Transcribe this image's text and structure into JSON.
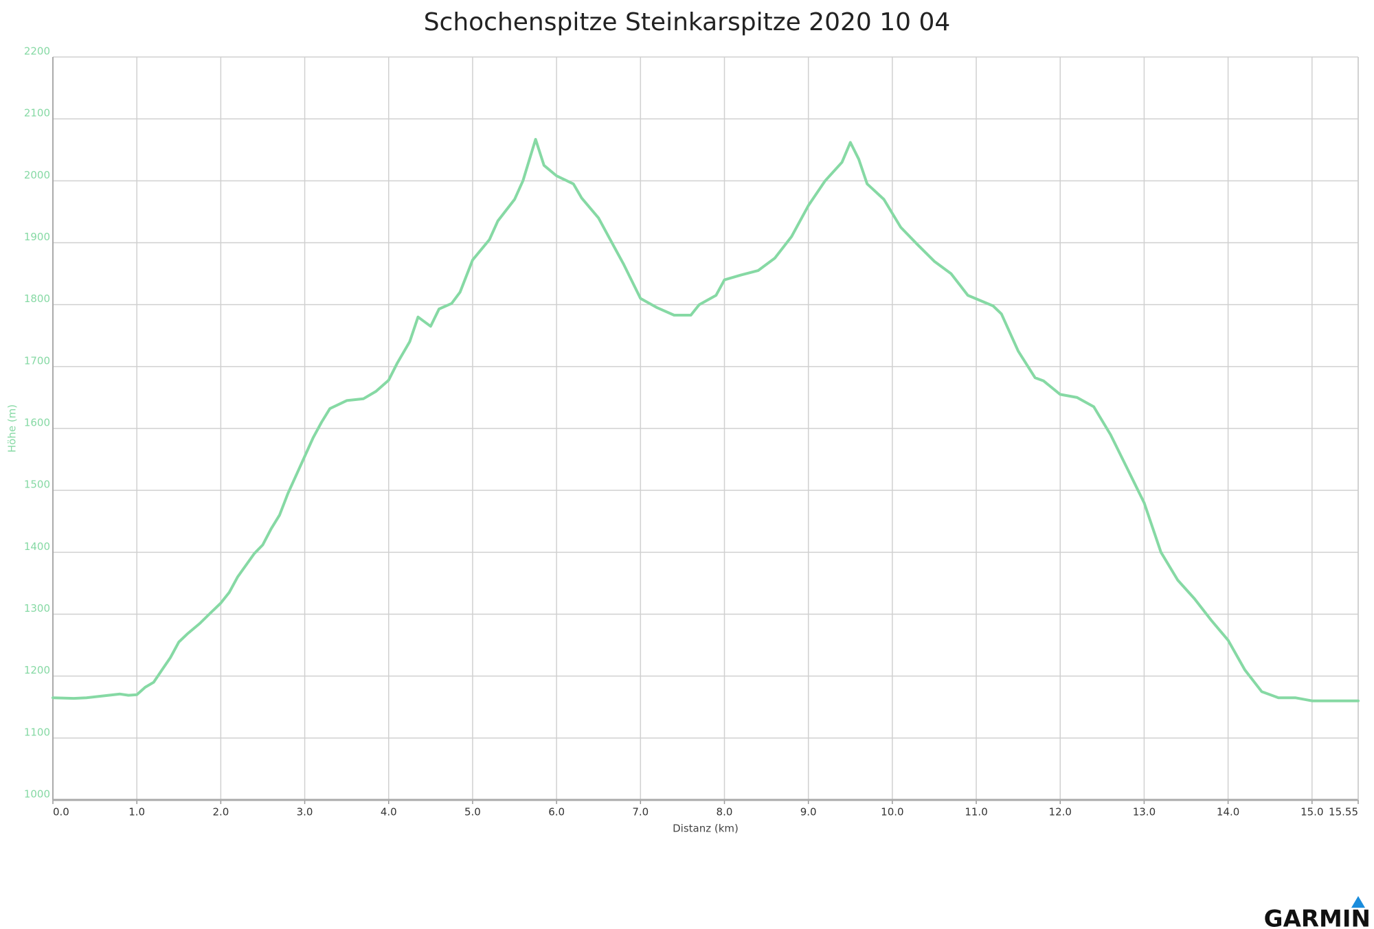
{
  "chart_data": {
    "type": "line",
    "title": "Schochenspitze Steinkarspitze 2020 10 04",
    "x_label": "Distanz (km)",
    "y_label": "Höhe (m)",
    "logo": "GARMIN",
    "color": "#86d9a4",
    "grid": true,
    "xlim": [
      0,
      15.55
    ],
    "ylim": [
      1000,
      2200
    ],
    "xticks": [
      {
        "value": 0,
        "label": "0.0"
      },
      {
        "value": 1,
        "label": "1.0"
      },
      {
        "value": 2,
        "label": "2.0"
      },
      {
        "value": 3,
        "label": "3.0"
      },
      {
        "value": 4,
        "label": "4.0"
      },
      {
        "value": 5,
        "label": "5.0"
      },
      {
        "value": 6,
        "label": "6.0"
      },
      {
        "value": 7,
        "label": "7.0"
      },
      {
        "value": 8,
        "label": "8.0"
      },
      {
        "value": 9,
        "label": "9.0"
      },
      {
        "value": 10,
        "label": "10.0"
      },
      {
        "value": 11,
        "label": "11.0"
      },
      {
        "value": 12,
        "label": "12.0"
      },
      {
        "value": 13,
        "label": "13.0"
      },
      {
        "value": 14,
        "label": "14.0"
      },
      {
        "value": 15,
        "label": "15.0"
      },
      15.55
    ],
    "yticks": [
      1000,
      1100,
      1200,
      1300,
      1400,
      1500,
      1600,
      1700,
      1800,
      1900,
      2000,
      2100,
      2200
    ],
    "x": [
      0.0,
      0.25,
      0.4,
      0.6,
      0.8,
      0.9,
      1.0,
      1.1,
      1.2,
      1.3,
      1.4,
      1.5,
      1.6,
      1.75,
      1.9,
      2.0,
      2.1,
      2.2,
      2.4,
      2.5,
      2.6,
      2.7,
      2.8,
      3.0,
      3.1,
      3.2,
      3.3,
      3.5,
      3.7,
      3.85,
      4.0,
      4.1,
      4.25,
      4.35,
      4.5,
      4.6,
      4.75,
      4.85,
      5.0,
      5.2,
      5.3,
      5.5,
      5.6,
      5.75,
      5.85,
      6.0,
      6.2,
      6.3,
      6.5,
      6.7,
      6.8,
      7.0,
      7.2,
      7.4,
      7.6,
      7.7,
      7.9,
      8.0,
      8.2,
      8.4,
      8.6,
      8.8,
      9.0,
      9.2,
      9.4,
      9.5,
      9.6,
      9.7,
      9.9,
      10.1,
      10.3,
      10.5,
      10.7,
      10.9,
      11.2,
      11.3,
      11.5,
      11.7,
      11.8,
      12.0,
      12.2,
      12.4,
      12.6,
      12.8,
      13.0,
      13.2,
      13.4,
      13.6,
      13.8,
      14.0,
      14.2,
      14.4,
      14.6,
      14.8,
      15.0,
      15.2,
      15.55
    ],
    "values": [
      1165,
      1164,
      1165,
      1168,
      1171,
      1169,
      1170,
      1182,
      1190,
      1210,
      1230,
      1255,
      1268,
      1285,
      1305,
      1318,
      1335,
      1360,
      1398,
      1412,
      1438,
      1460,
      1495,
      1555,
      1585,
      1610,
      1632,
      1645,
      1648,
      1660,
      1678,
      1705,
      1740,
      1780,
      1765,
      1793,
      1802,
      1820,
      1872,
      1905,
      1935,
      1970,
      2000,
      2067,
      2025,
      2008,
      1995,
      1972,
      1940,
      1890,
      1865,
      1810,
      1795,
      1783,
      1783,
      1800,
      1815,
      1840,
      1848,
      1855,
      1875,
      1910,
      1960,
      2000,
      2030,
      2062,
      2035,
      1995,
      1970,
      1925,
      1897,
      1870,
      1850,
      1815,
      1798,
      1785,
      1725,
      1682,
      1677,
      1655,
      1650,
      1635,
      1590,
      1535,
      1480,
      1400,
      1355,
      1325,
      1290,
      1258,
      1210,
      1175,
      1165,
      1165,
      1160,
      1160,
      1160
    ]
  }
}
